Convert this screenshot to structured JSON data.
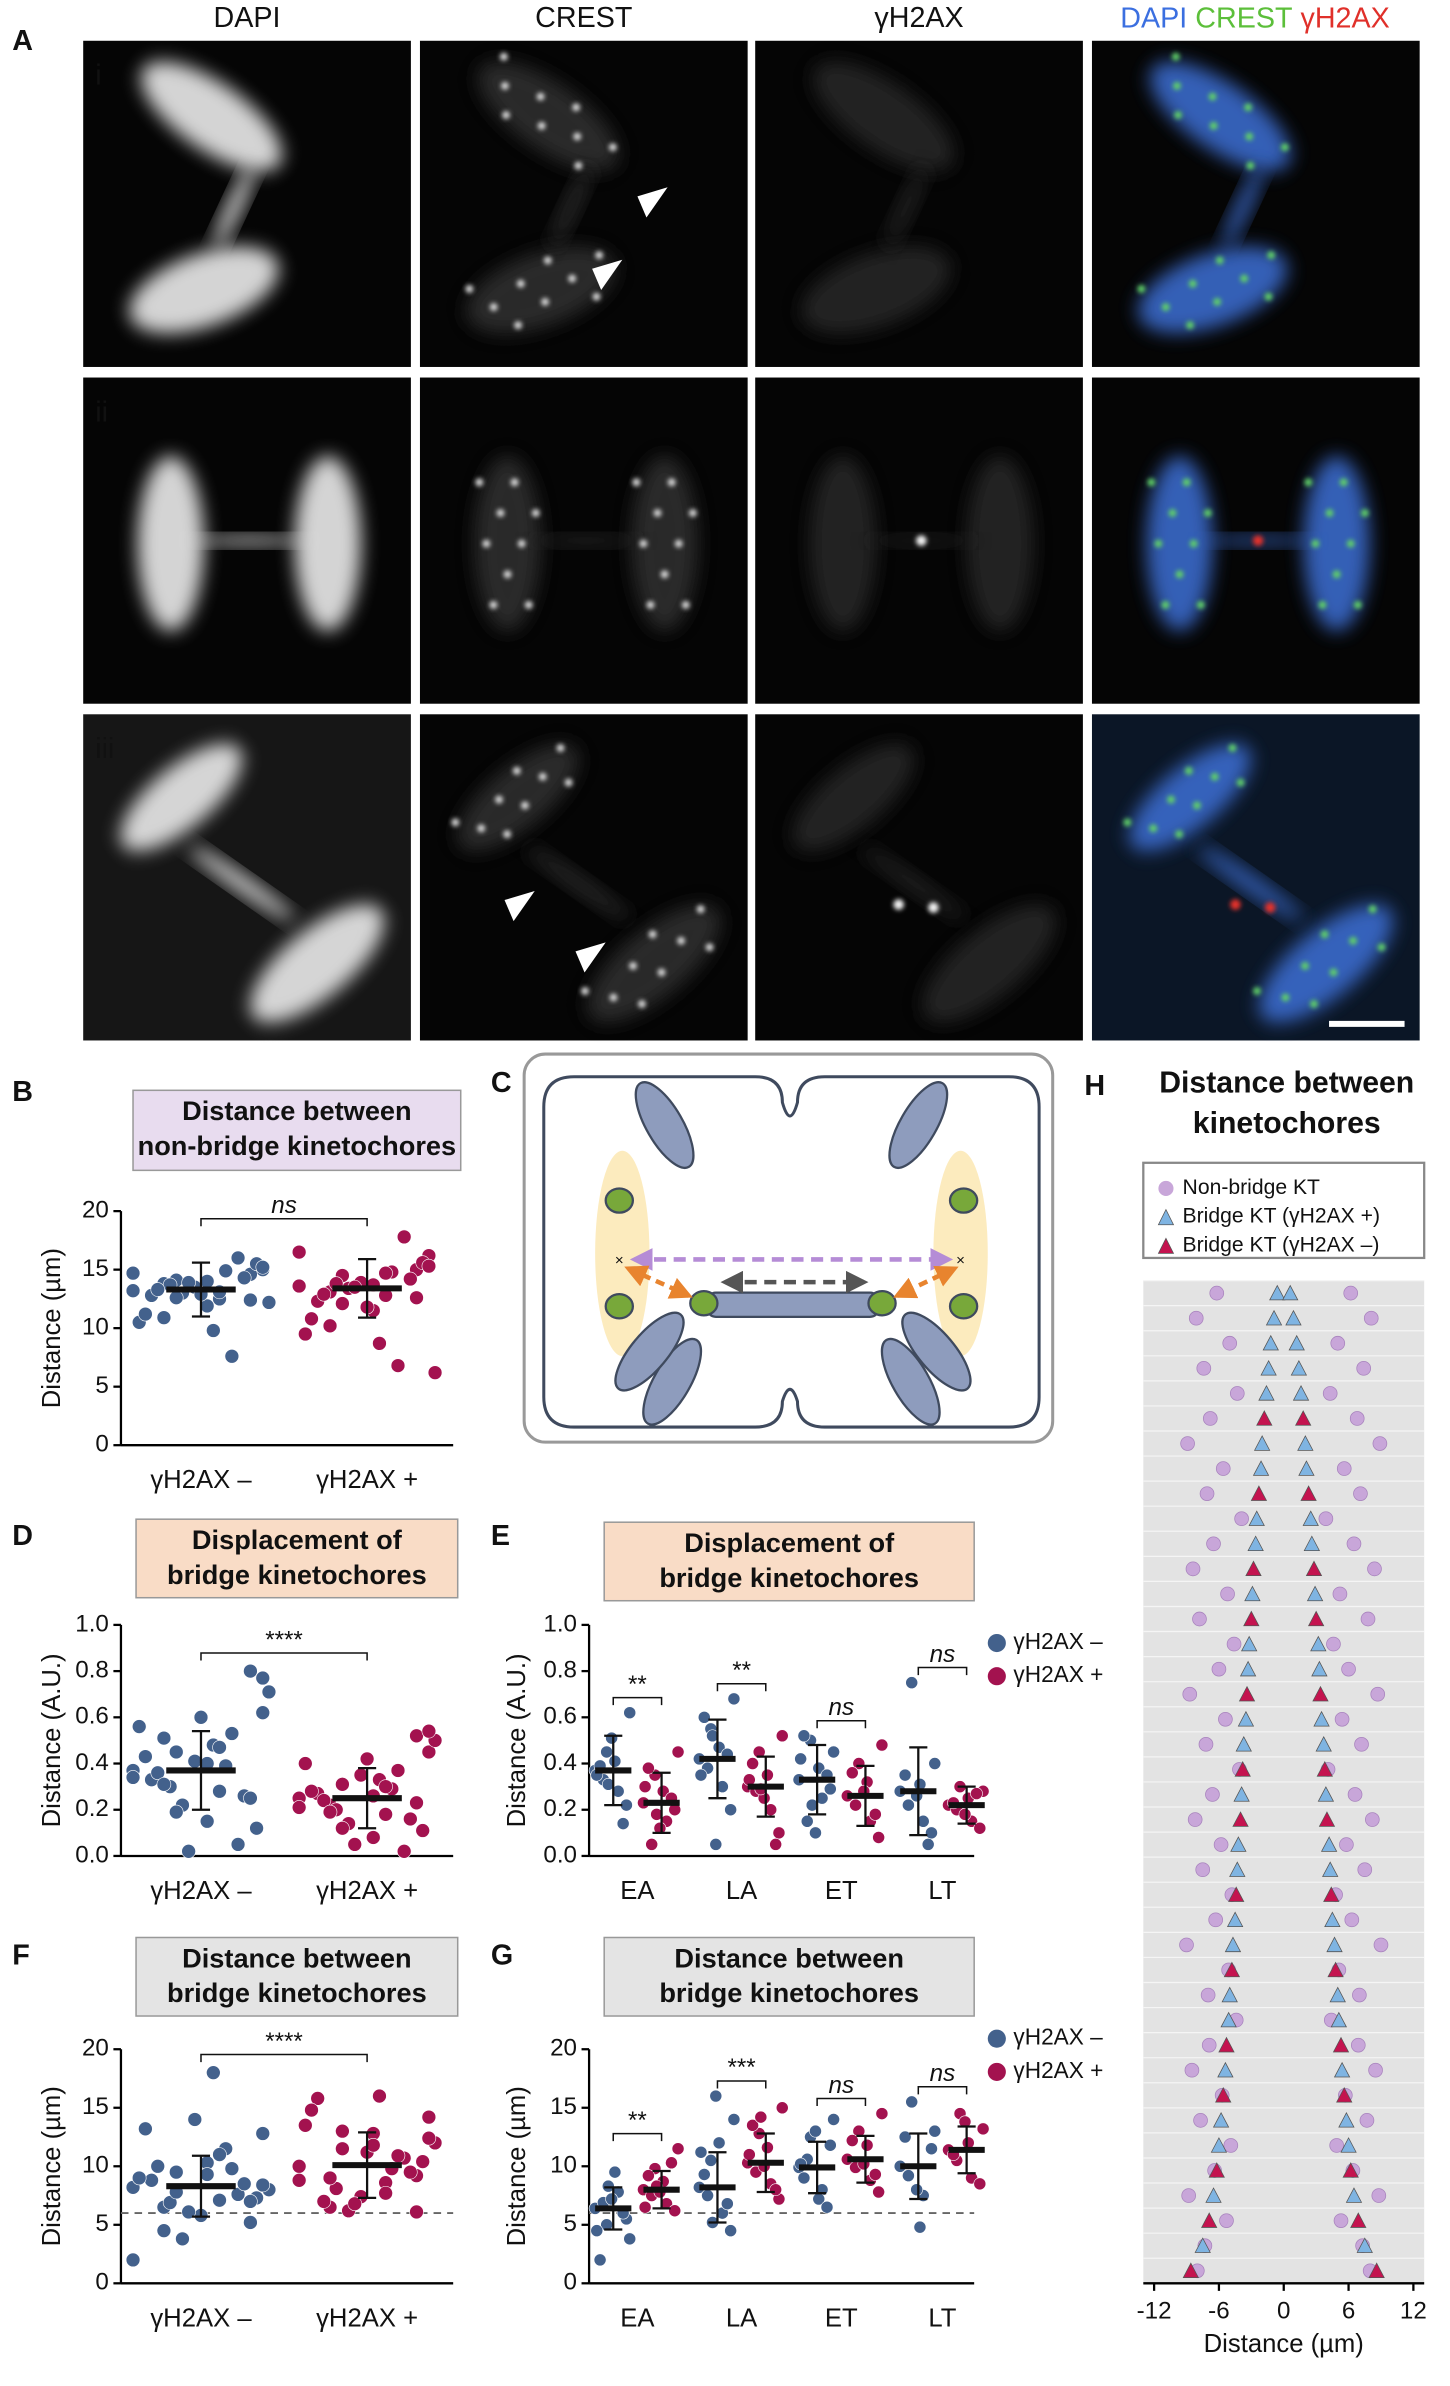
{
  "figure": {
    "panel": "A",
    "channels": [
      "DAPI",
      "CREST",
      "γH2AX"
    ],
    "merge_labels": [
      "DAPI",
      "CREST",
      "γH2AX"
    ],
    "merge_colors": [
      "#3b6fe0",
      "#5cbf3a",
      "#e0302a"
    ],
    "rows": [
      "i",
      "ii",
      "iii"
    ]
  },
  "diagram": {
    "panel": "C"
  },
  "chart_data": [
    {
      "type": "dot",
      "panel": "B",
      "title": [
        "Distance between",
        "non-bridge kinetochores"
      ],
      "title_box_color": "#e8dcef",
      "ylabel": "Distance (µm)",
      "categories": [
        "γH2AX –",
        "γH2AX +"
      ],
      "colors": [
        "#43618c",
        "#a3124f"
      ],
      "ylim": [
        0,
        20
      ],
      "yticks": [
        0,
        5,
        10,
        15,
        20
      ],
      "annotations": [
        "ns"
      ],
      "points": [
        [
          13.2,
          14.1,
          12.5,
          15.0,
          13.8,
          11.9,
          14.6,
          12.8,
          13.5,
          16.0,
          10.5,
          13.0,
          14.9,
          12.2,
          13.7,
          9.8,
          15.5,
          13.3,
          12.9,
          14.3,
          11.2,
          13.9,
          7.6,
          14.7,
          12.6,
          13.1,
          15.2,
          10.9,
          14.0,
          12.4
        ],
        [
          13.6,
          14.5,
          12.8,
          16.2,
          13.1,
          11.5,
          15.0,
          12.3,
          13.9,
          17.8,
          9.5,
          13.4,
          14.8,
          6.2,
          13.8,
          8.7,
          15.6,
          12.9,
          11.8,
          14.2,
          10.8,
          13.5,
          6.8,
          16.5,
          12.1,
          14.7,
          15.3,
          10.2,
          13.7,
          12.6
        ]
      ],
      "means": [
        13.3,
        13.4
      ],
      "sds": [
        2.3,
        2.5
      ]
    },
    {
      "type": "dot",
      "panel": "D",
      "title": [
        "Displacement of",
        "bridge kinetochores"
      ],
      "title_box_color": "#f9dcc6",
      "ylabel": "Distance (A.U.)",
      "categories": [
        "γH2AX –",
        "γH2AX +"
      ],
      "colors": [
        "#43618c",
        "#a3124f"
      ],
      "ylim": [
        0,
        1
      ],
      "yticks": [
        {
          "value": 0,
          "label": "0.0"
        },
        {
          "value": 0.2,
          "label": "0.2"
        },
        {
          "value": 0.4,
          "label": "0.4"
        },
        {
          "value": 0.6,
          "label": "0.6"
        },
        {
          "value": 0.8,
          "label": "0.8"
        },
        {
          "value": 1,
          "label": "1.0"
        }
      ],
      "annotations": [
        "****"
      ],
      "points": [
        [
          0.37,
          0.45,
          0.28,
          0.62,
          0.51,
          0.15,
          0.8,
          0.33,
          0.41,
          0.05,
          0.56,
          0.22,
          0.39,
          0.71,
          0.3,
          0.48,
          0.12,
          0.36,
          0.6,
          0.26,
          0.43,
          0.02,
          0.53,
          0.34,
          0.19,
          0.47,
          0.77,
          0.31,
          0.4,
          0.25
        ],
        [
          0.25,
          0.31,
          0.18,
          0.45,
          0.22,
          0.08,
          0.52,
          0.27,
          0.35,
          0.02,
          0.4,
          0.14,
          0.29,
          0.5,
          0.2,
          0.33,
          0.11,
          0.24,
          0.42,
          0.16,
          0.28,
          0.05,
          0.37,
          0.21,
          0.12,
          0.3,
          0.54,
          0.19,
          0.26,
          0.23
        ]
      ],
      "means": [
        0.37,
        0.25
      ],
      "sds": [
        0.17,
        0.13
      ]
    },
    {
      "type": "grouped_dot",
      "panel": "E",
      "title": [
        "Displacement of",
        "bridge kinetochores"
      ],
      "title_box_color": "#f9dcc6",
      "ylabel": "Distance (A.U.)",
      "categories": [
        "EA",
        "LA",
        "ET",
        "LT"
      ],
      "ylim": [
        0,
        1
      ],
      "yticks": [
        {
          "value": 0,
          "label": "0.0"
        },
        {
          "value": 0.2,
          "label": "0.2"
        },
        {
          "value": 0.4,
          "label": "0.4"
        },
        {
          "value": 0.6,
          "label": "0.6"
        },
        {
          "value": 0.8,
          "label": "0.8"
        },
        {
          "value": 1,
          "label": "1.0"
        }
      ],
      "annotations": [
        "**",
        "**",
        "ns",
        "ns"
      ],
      "series": [
        {
          "name": "γH2AX –",
          "color": "#43618c",
          "means": [
            0.37,
            0.42,
            0.33,
            0.28
          ],
          "sds": [
            0.15,
            0.17,
            0.15,
            0.19
          ],
          "points": [
            [
              0.37,
              0.45,
              0.28,
              0.62,
              0.33,
              0.41,
              0.22,
              0.39,
              0.51,
              0.14,
              0.35,
              0.31
            ],
            [
              0.42,
              0.55,
              0.3,
              0.68,
              0.38,
              0.47,
              0.2,
              0.6,
              0.05,
              0.44,
              0.35,
              0.52
            ],
            [
              0.33,
              0.5,
              0.25,
              0.45,
              0.15,
              0.38,
              0.29,
              0.52,
              0.1,
              0.35,
              0.42,
              0.22
            ],
            [
              0.28,
              0.75,
              0.15,
              0.4,
              0.22,
              0.31,
              0.1,
              0.35,
              0.26,
              0.05
            ]
          ]
        },
        {
          "name": "γH2AX +",
          "color": "#a3124f",
          "means": [
            0.23,
            0.3,
            0.26,
            0.22
          ],
          "sds": [
            0.13,
            0.13,
            0.13,
            0.08
          ],
          "points": [
            [
              0.23,
              0.35,
              0.15,
              0.45,
              0.05,
              0.28,
              0.2,
              0.38,
              0.12,
              0.25,
              0.3,
              0.18
            ],
            [
              0.3,
              0.45,
              0.2,
              0.52,
              0.28,
              0.35,
              0.1,
              0.4,
              0.25,
              0.05,
              0.33,
              0.29
            ],
            [
              0.26,
              0.4,
              0.15,
              0.48,
              0.22,
              0.32,
              0.08,
              0.36,
              0.28,
              0.18
            ],
            [
              0.22,
              0.3,
              0.15,
              0.28,
              0.2,
              0.25,
              0.12,
              0.23,
              0.18,
              0.27
            ]
          ]
        }
      ]
    },
    {
      "type": "dot",
      "panel": "F",
      "title": [
        "Distance between",
        "bridge kinetochores"
      ],
      "title_box_color": "#e4e4e4",
      "ylabel": "Distance (µm)",
      "categories": [
        "γH2AX –",
        "γH2AX +"
      ],
      "colors": [
        "#43618c",
        "#a3124f"
      ],
      "ylim": [
        0,
        20
      ],
      "yticks": [
        0,
        5,
        10,
        15,
        20
      ],
      "annotations": [
        "****"
      ],
      "reference_line": 6,
      "points": [
        [
          8.2,
          9.5,
          7.1,
          12.8,
          6.5,
          10.3,
          5.2,
          8.8,
          14.0,
          7.6,
          9.0,
          3.8,
          11.5,
          8.0,
          6.9,
          18.0,
          7.3,
          10.0,
          5.8,
          8.5,
          13.2,
          6.1,
          9.8,
          2.0,
          7.8,
          11.0,
          8.4,
          4.5,
          9.3,
          7.0
        ],
        [
          10.0,
          11.5,
          8.6,
          14.2,
          6.5,
          12.8,
          9.2,
          15.8,
          7.4,
          10.7,
          13.5,
          6.2,
          9.8,
          12.0,
          8.1,
          16.0,
          10.4,
          7.0,
          11.2,
          9.5,
          14.8,
          6.8,
          10.9,
          8.8,
          13.0,
          7.7,
          12.4,
          9.0,
          11.8,
          6.1
        ]
      ],
      "means": [
        8.3,
        10.1
      ],
      "sds": [
        2.6,
        2.8
      ]
    },
    {
      "type": "grouped_dot",
      "panel": "G",
      "title": [
        "Distance between",
        "bridge kinetochores"
      ],
      "title_box_color": "#e4e4e4",
      "ylabel": "Distance (µm)",
      "categories": [
        "EA",
        "LA",
        "ET",
        "LT"
      ],
      "ylim": [
        0,
        20
      ],
      "yticks": [
        0,
        5,
        10,
        15,
        20
      ],
      "annotations": [
        "**",
        "***",
        "ns",
        "ns"
      ],
      "reference_line": 6,
      "series": [
        {
          "name": "γH2AX –",
          "color": "#43618c",
          "means": [
            6.4,
            8.2,
            9.9,
            10.0
          ],
          "sds": [
            1.8,
            3.0,
            2.2,
            2.8
          ],
          "points": [
            [
              6.4,
              5.0,
              7.8,
              3.8,
              6.9,
              9.5,
              5.5,
              2.0,
              7.2,
              6.0,
              4.5,
              8.3
            ],
            [
              8.2,
              10.5,
              6.0,
              14.0,
              7.5,
              12.0,
              4.5,
              9.3,
              16.0,
              6.8,
              11.2,
              5.2
            ],
            [
              9.9,
              12.5,
              8.0,
              14.0,
              10.6,
              7.2,
              11.8,
              9.0,
              13.0,
              6.5,
              10.2
            ],
            [
              10.0,
              15.5,
              7.5,
              13.0,
              9.2,
              4.8,
              11.5,
              12.5,
              8.0
            ]
          ]
        },
        {
          "name": "γH2AX +",
          "color": "#a3124f",
          "means": [
            8.0,
            10.3,
            10.6,
            11.4
          ],
          "sds": [
            1.6,
            2.5,
            2.0,
            2.0
          ],
          "points": [
            [
              8.0,
              9.8,
              6.8,
              11.5,
              7.5,
              8.7,
              6.2,
              9.2,
              7.8,
              10.3,
              6.5,
              8.3
            ],
            [
              10.3,
              12.8,
              8.5,
              15.0,
              9.5,
              11.6,
              7.2,
              13.5,
              10.0,
              8.0,
              11.0,
              14.2
            ],
            [
              10.6,
              13.0,
              8.8,
              14.5,
              9.9,
              11.8,
              7.8,
              12.2,
              10.2,
              9.3
            ],
            [
              11.4,
              14.5,
              9.0,
              13.2,
              10.5,
              12.0,
              8.5,
              11.0,
              13.8
            ]
          ]
        }
      ]
    },
    {
      "type": "mirror",
      "panel": "H",
      "title": [
        "Distance between",
        "kinetochores"
      ],
      "xlabel": "Distance (µm)",
      "xlim": [
        -13,
        13
      ],
      "xticks": [
        -12,
        -6,
        0,
        6,
        12
      ],
      "series": [
        {
          "name": "Non-bridge KT",
          "color": "#c8a6d9",
          "marker": "circle",
          "values": [
            6.2,
            8.1,
            5.0,
            7.4,
            4.3,
            6.8,
            8.9,
            5.6,
            7.1,
            3.9,
            6.5,
            8.4,
            5.2,
            7.8,
            4.6,
            6.0,
            8.7,
            5.4,
            7.2,
            4.1,
            6.6,
            8.2,
            5.8,
            7.5,
            4.8,
            6.3,
            9.0,
            5.1,
            7.0,
            4.4,
            6.9,
            8.5,
            5.7,
            7.7,
            4.9,
            6.4,
            8.8,
            5.3,
            7.3,
            8.0
          ]
        },
        {
          "name": "Bridge KT (γH2AX +)",
          "color": "#7fb4e2",
          "marker": "triangle",
          "values": [
            0.6,
            0.9,
            1.2,
            1.4,
            1.6,
            null,
            2.0,
            2.1,
            null,
            2.5,
            2.6,
            null,
            2.9,
            null,
            3.2,
            3.3,
            null,
            3.5,
            3.7,
            null,
            3.9,
            null,
            4.2,
            4.3,
            null,
            4.5,
            4.7,
            null,
            5.0,
            5.1,
            null,
            5.4,
            null,
            5.8,
            6.0,
            null,
            6.5,
            null,
            7.5,
            null
          ]
        },
        {
          "name": "Bridge KT (γH2AX –)",
          "color": "#c4134f",
          "marker": "triangle",
          "values": [
            null,
            null,
            null,
            null,
            null,
            1.8,
            null,
            null,
            2.3,
            null,
            null,
            2.8,
            null,
            3.0,
            null,
            null,
            3.4,
            null,
            null,
            3.8,
            null,
            4.0,
            null,
            null,
            4.4,
            null,
            null,
            4.8,
            null,
            null,
            5.3,
            null,
            5.6,
            null,
            null,
            6.2,
            null,
            6.9,
            null,
            8.6
          ]
        }
      ]
    }
  ]
}
